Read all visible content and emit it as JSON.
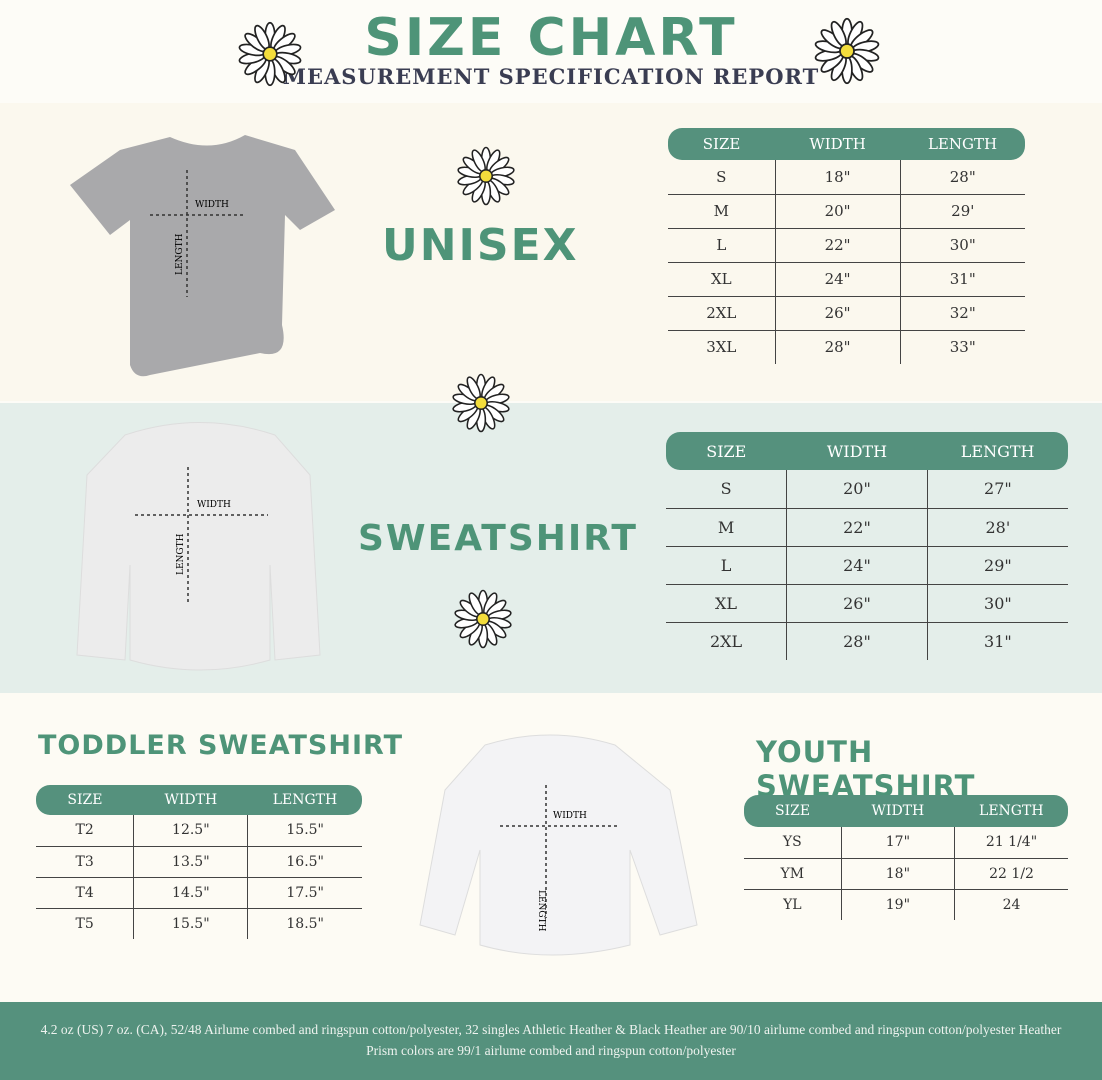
{
  "header": {
    "title": "SIZE CHART",
    "subtitle": "MEASUREMENT SPECIFICATION REPORT"
  },
  "colors": {
    "accent": "#55917d",
    "band_teal": "#e4eeea",
    "cream": "#fbf8ee",
    "dark_text": "#3a3d52"
  },
  "diagram_labels": {
    "width": "WIDTH",
    "length": "LENGTH"
  },
  "unisex": {
    "title": "UNISEX",
    "headers": [
      "SIZE",
      "WIDTH",
      "LENGTH"
    ],
    "rows": [
      [
        "S",
        "18\"",
        "28\""
      ],
      [
        "M",
        "20\"",
        "29'"
      ],
      [
        "L",
        "22\"",
        "30\""
      ],
      [
        "XL",
        "24\"",
        "31\""
      ],
      [
        "2XL",
        "26\"",
        "32\""
      ],
      [
        "3XL",
        "28\"",
        "33\""
      ]
    ]
  },
  "sweatshirt": {
    "title": "SWEATSHIRT",
    "headers": [
      "SIZE",
      "WIDTH",
      "LENGTH"
    ],
    "rows": [
      [
        "S",
        "20\"",
        "27\""
      ],
      [
        "M",
        "22\"",
        "28'"
      ],
      [
        "L",
        "24\"",
        "29\""
      ],
      [
        "XL",
        "26\"",
        "30\""
      ],
      [
        "2XL",
        "28\"",
        "31\""
      ]
    ]
  },
  "toddler": {
    "title": "TODDLER SWEATSHIRT",
    "headers": [
      "SIZE",
      "WIDTH",
      "LENGTH"
    ],
    "rows": [
      [
        "T2",
        "12.5\"",
        "15.5\""
      ],
      [
        "T3",
        "13.5\"",
        "16.5\""
      ],
      [
        "T4",
        "14.5\"",
        "17.5\""
      ],
      [
        "T5",
        "15.5\"",
        "18.5\""
      ]
    ]
  },
  "youth": {
    "title": "YOUTH SWEATSHIRT",
    "headers": [
      "SIZE",
      "WIDTH",
      "LENGTH"
    ],
    "rows": [
      [
        "YS",
        "17\"",
        "21 1/4\""
      ],
      [
        "YM",
        "18\"",
        "22 1/2"
      ],
      [
        "YL",
        "19\"",
        "24"
      ]
    ]
  },
  "footer": {
    "text": "4.2 oz (US) 7 oz. (CA), 52/48 Airlume combed and ringspun cotton/polyester, 32 singles Athletic Heather & Black Heather are 90/10 airlume combed and ringspun cotton/polyester Heather Prism colors are 99/1 airlume combed and ringspun cotton/polyester"
  }
}
